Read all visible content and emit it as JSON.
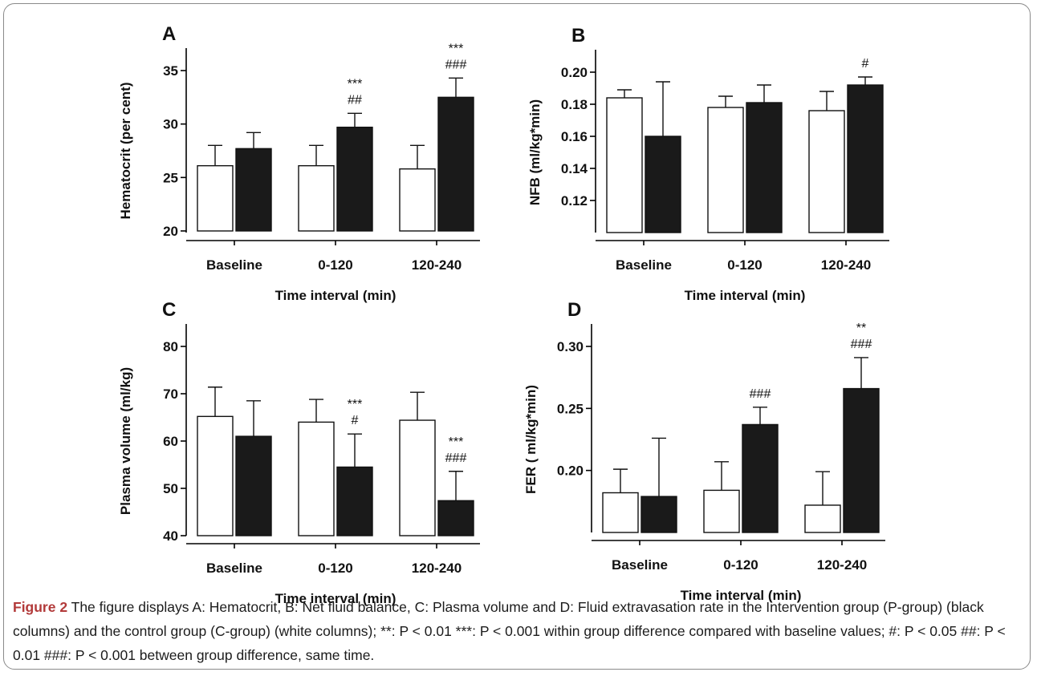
{
  "figure": {
    "caption_lead": "Figure 2",
    "caption_text": " The figure displays A: Hematocrit, B: Net fluid balance, C: Plasma volume and D: Fluid extravasation rate in the Intervention group (P-group) (black columns) and the control group (C-group) (white columns); **: P < 0.01 ***: P < 0.001 within group difference compared with baseline values; #: P < 0.05 ##: P < 0.01 ###: P < 0.001 between group difference, same time."
  },
  "colors": {
    "control": "#ffffff",
    "intervention": "#1a1a1a",
    "axis": "#000000"
  },
  "chart_data": [
    {
      "panel": "A",
      "type": "bar",
      "ylabel": "Hematocrit (per cent)",
      "xlabel": "Time interval (min)",
      "ylim": [
        20,
        35
      ],
      "yticks": [
        "20",
        "25",
        "30",
        "35"
      ],
      "categories": [
        "Baseline",
        "0-120",
        "120-240"
      ],
      "series": [
        {
          "values": [
            26.1,
            26.1,
            25.8
          ],
          "errors": [
            1.9,
            1.9,
            2.2
          ]
        },
        {
          "values": [
            27.7,
            29.7,
            32.5
          ],
          "errors": [
            1.5,
            1.3,
            1.8
          ]
        }
      ],
      "annotations": [
        "",
        "***\n##",
        "***\n###"
      ]
    },
    {
      "panel": "B",
      "type": "bar",
      "ylabel": "NFB (ml/kg*min)",
      "xlabel": "Time interval (min)",
      "ylim": [
        0.1,
        0.2
      ],
      "yticks": [
        "0.12",
        "0.14",
        "0.16",
        "0.18",
        "0.20"
      ],
      "categories": [
        "Baseline",
        "0-120",
        "120-240"
      ],
      "series": [
        {
          "values": [
            0.184,
            0.178,
            0.176
          ],
          "errors": [
            0.005,
            0.007,
            0.012
          ]
        },
        {
          "values": [
            0.16,
            0.181,
            0.192
          ],
          "errors": [
            0.034,
            0.011,
            0.005
          ]
        }
      ],
      "annotations": [
        "",
        "",
        "#"
      ]
    },
    {
      "panel": "C",
      "type": "bar",
      "ylabel": "Plasma volume (ml/kg)",
      "xlabel": "Time interval (min)",
      "ylim": [
        40,
        80
      ],
      "yticks": [
        "40",
        "50",
        "60",
        "70",
        "80"
      ],
      "categories": [
        "Baseline",
        "0-120",
        "120-240"
      ],
      "series": [
        {
          "values": [
            65.2,
            64.0,
            64.4
          ],
          "errors": [
            6.2,
            4.8,
            5.9
          ]
        },
        {
          "values": [
            61.0,
            54.5,
            47.4
          ],
          "errors": [
            7.5,
            7.0,
            6.2
          ]
        }
      ],
      "annotations": [
        "",
        "***\n#",
        "***\n###"
      ]
    },
    {
      "panel": "D",
      "type": "bar",
      "ylabel": "FER ( ml/kg*min)",
      "xlabel": "Time interval (min)",
      "ylim": [
        0.15,
        0.3
      ],
      "yticks": [
        "0.20",
        "0.25",
        "0.30"
      ],
      "categories": [
        "Baseline",
        "0-120",
        "120-240"
      ],
      "series": [
        {
          "values": [
            0.182,
            0.184,
            0.172
          ],
          "errors": [
            0.019,
            0.023,
            0.027
          ]
        },
        {
          "values": [
            0.179,
            0.237,
            0.266
          ],
          "errors": [
            0.047,
            0.014,
            0.025
          ]
        }
      ],
      "annotations": [
        "",
        "###",
        "**\n###"
      ]
    }
  ]
}
